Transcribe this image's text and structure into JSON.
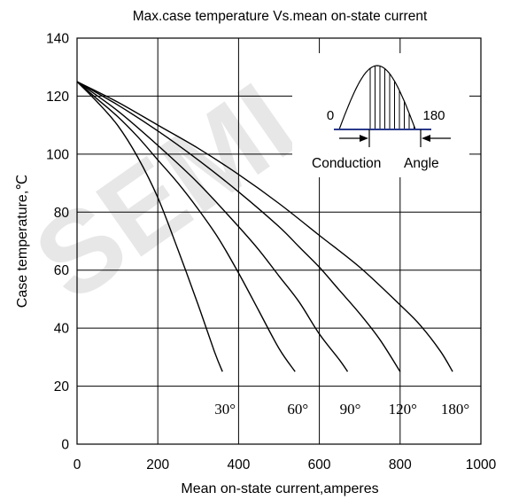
{
  "chart_data": {
    "type": "line",
    "title": "Max.case temperature Vs.mean on-state current",
    "xlabel": "Mean on-state current,amperes",
    "ylabel": "Case temperature,℃",
    "xlim": [
      0,
      1000
    ],
    "ylim": [
      0,
      140
    ],
    "xticks": [
      "0",
      "200",
      "400",
      "600",
      "800",
      "1000"
    ],
    "yticks": [
      "0",
      "20",
      "40",
      "60",
      "80",
      "100",
      "120",
      "140"
    ],
    "grid": true,
    "watermark": "SEMI",
    "series": [
      {
        "name": "30°",
        "x": [
          0,
          50,
          100,
          150,
          200,
          250,
          300,
          340,
          360
        ],
        "y": [
          125,
          118,
          110,
          99,
          85,
          67,
          48,
          32,
          25
        ]
      },
      {
        "name": "60°",
        "x": [
          0,
          50,
          100,
          150,
          200,
          250,
          300,
          350,
          400,
          450,
          500,
          540
        ],
        "y": [
          125,
          119,
          113,
          106,
          98,
          90,
          81,
          71,
          59,
          46,
          33,
          25
        ]
      },
      {
        "name": "90°",
        "x": [
          0,
          100,
          200,
          300,
          400,
          450,
          500,
          550,
          600,
          650,
          670
        ],
        "y": [
          125,
          115,
          103,
          90,
          75,
          67,
          58,
          49,
          38,
          29,
          25
        ]
      },
      {
        "name": "120°",
        "x": [
          0,
          100,
          200,
          300,
          400,
          500,
          550,
          600,
          650,
          700,
          750,
          800
        ],
        "y": [
          125,
          117,
          108,
          98,
          87,
          75,
          68,
          61,
          53,
          45,
          36,
          25
        ]
      },
      {
        "name": "180°",
        "x": [
          0,
          100,
          200,
          300,
          400,
          500,
          600,
          700,
          800,
          850,
          900,
          930
        ],
        "y": [
          125,
          118,
          110,
          102,
          93,
          83,
          72,
          61,
          48,
          41,
          32,
          25
        ]
      }
    ],
    "inset": {
      "label_start": "0",
      "label_end": "180",
      "caption": "Conduction Angle",
      "caption_left": "Conduction",
      "caption_right": "Angle"
    }
  }
}
